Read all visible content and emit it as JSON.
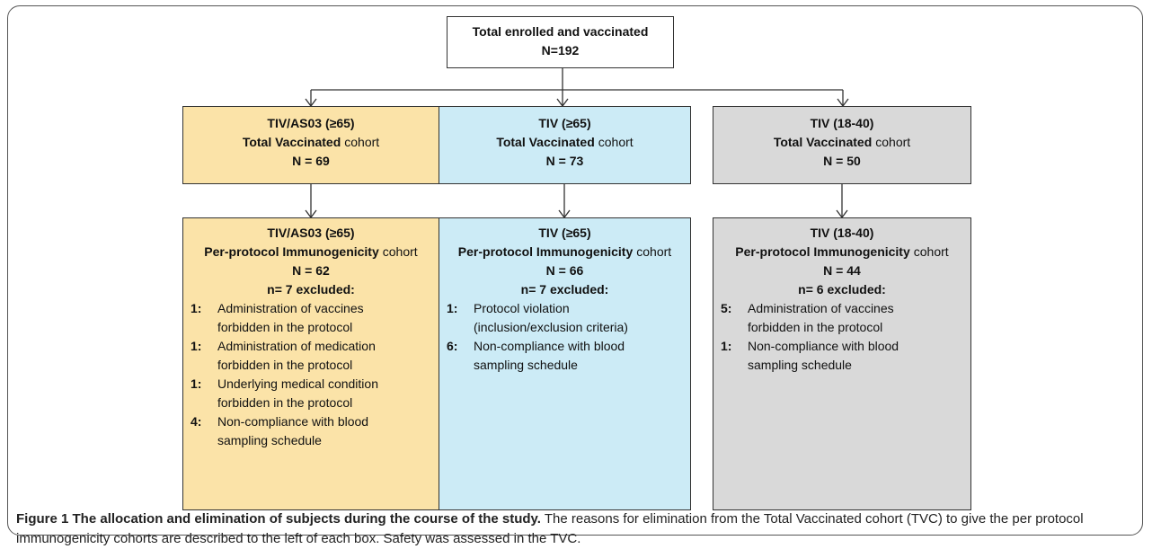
{
  "top": {
    "title": "Total enrolled and vaccinated",
    "n": "N=192"
  },
  "columns": [
    {
      "group": "TIV/AS03 (≥65)",
      "top_bold": "Total Vaccinated",
      "top_suffix": "cohort",
      "top_n": "N = 69",
      "bottom_bold": "Per-protocol Immunogenicity",
      "bottom_suffix": "cohort",
      "bottom_n": "N = 62",
      "excluded": "n= 7 excluded:",
      "reasons": [
        {
          "count": "1:",
          "text": "Administration of vaccines forbidden in the protocol"
        },
        {
          "count": "1:",
          "text": "Administration of medication forbidden in the protocol"
        },
        {
          "count": "1:",
          "text": "Underlying medical condition forbidden in the protocol"
        },
        {
          "count": "4:",
          "text": "Non-compliance with blood sampling schedule"
        }
      ]
    },
    {
      "group": "TIV (≥65)",
      "top_bold": "Total Vaccinated",
      "top_suffix": "cohort",
      "top_n": "N = 73",
      "bottom_bold": "Per-protocol Immunogenicity",
      "bottom_suffix": "cohort",
      "bottom_n": "N = 66",
      "excluded": "n= 7 excluded:",
      "reasons": [
        {
          "count": "1:",
          "text": "Protocol violation (inclusion/exclusion criteria)"
        },
        {
          "count": "6:",
          "text": "Non-compliance with blood sampling schedule"
        }
      ]
    },
    {
      "group": "TIV (18-40)",
      "top_bold": "Total Vaccinated",
      "top_suffix": "cohort",
      "top_n": "N = 50",
      "bottom_bold": "Per-protocol Immunogenicity",
      "bottom_suffix": "cohort",
      "bottom_n": "N = 44",
      "excluded": "n= 6 excluded:",
      "reasons": [
        {
          "count": "5:",
          "text": "Administration of vaccines forbidden in the protocol"
        },
        {
          "count": "1:",
          "text": "Non-compliance with blood sampling schedule"
        }
      ]
    }
  ],
  "caption": {
    "title": "Figure 1 The allocation and elimination of subjects during the course of the study.",
    "text": "The reasons for elimination from the Total Vaccinated cohort (TVC) to give the per protocol immunogenicity cohorts are described to the left of each box. Safety was assessed in the TVC."
  }
}
